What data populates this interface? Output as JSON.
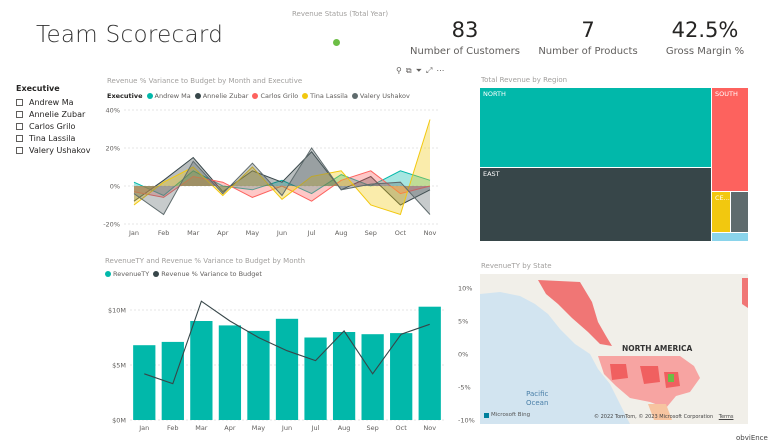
{
  "page": {
    "title": "Team Scorecard"
  },
  "kpis": {
    "status_title": "Revenue Status (Total Year)",
    "status_color": "#6cbe45",
    "customers": {
      "value": "83",
      "label": "Number of Customers"
    },
    "products": {
      "value": "7",
      "label": "Number of Products"
    },
    "margin": {
      "value": "42.5%",
      "label": "Gross Margin %"
    }
  },
  "slicer": {
    "title": "Executive",
    "items": [
      "Andrew Ma",
      "Annelie Zubar",
      "Carlos Grilo",
      "Tina Lassila",
      "Valery Ushakov"
    ]
  },
  "toolbar": {
    "icons": [
      "pin-icon",
      "copy-icon",
      "filter-icon",
      "focus-icon",
      "more-icon"
    ],
    "glyphs": [
      "⚲",
      "⧉",
      "⏷",
      "⤢",
      "⋯"
    ]
  },
  "chart_data": [
    {
      "type": "area",
      "title": "Revenue % Variance to Budget by Month and Executive",
      "legend_title": "Executive",
      "legend_placement": "top-left",
      "categories": [
        "Jan",
        "Feb",
        "Mar",
        "Apr",
        "May",
        "Jun",
        "Jul",
        "Aug",
        "Sep",
        "Oct",
        "Nov"
      ],
      "ylim": [
        -20,
        40
      ],
      "yticks": [
        -20,
        0,
        20,
        40
      ],
      "ytick_labels": [
        "-20%",
        "0%",
        "20%",
        "40%"
      ],
      "grid": true,
      "series": [
        {
          "name": "Andrew Ma",
          "color": "#01b8aa",
          "values": [
            2,
            -5,
            8,
            0,
            -2,
            3,
            -4,
            6,
            0,
            8,
            3
          ]
        },
        {
          "name": "Annelie Zubar",
          "color": "#374649",
          "values": [
            -8,
            3,
            15,
            -3,
            8,
            2,
            18,
            -2,
            5,
            -10,
            -2
          ]
        },
        {
          "name": "Carlos Grilo",
          "color": "#fd625e",
          "values": [
            -3,
            -6,
            5,
            2,
            -6,
            0,
            -8,
            3,
            8,
            -4,
            0
          ]
        },
        {
          "name": "Tina Lassila",
          "color": "#f2c80f",
          "values": [
            -10,
            2,
            10,
            -5,
            10,
            -7,
            5,
            8,
            -10,
            -15,
            35
          ]
        },
        {
          "name": "Valery Ushakov",
          "color": "#5f6b6d",
          "values": [
            -4,
            -15,
            13,
            -4,
            12,
            -5,
            20,
            -2,
            1,
            2,
            -15
          ]
        }
      ]
    },
    {
      "type": "bar",
      "title": "Total Revenue by Region",
      "categories": [
        "NORTH",
        "SOUTH",
        "EAST",
        "CE..."
      ],
      "colors": [
        "#01b8aa",
        "#fd625e",
        "#374649",
        "#f2c80f"
      ]
    },
    {
      "type": "bar",
      "title": "RevenueTY and Revenue % Variance to Budget by Month",
      "legend_placement": "top-left",
      "categories": [
        "Jan",
        "Feb",
        "Mar",
        "Apr",
        "May",
        "Jun",
        "Jul",
        "Aug",
        "Sep",
        "Oct",
        "Nov"
      ],
      "ylim": [
        0,
        12
      ],
      "y2lim": [
        -10,
        10
      ],
      "yticks": [
        0,
        5,
        10
      ],
      "ytick_labels": [
        "$0M",
        "$5M",
        "$10M"
      ],
      "y2ticks": [
        -10,
        -5,
        0,
        5,
        10
      ],
      "y2tick_labels": [
        "-10%",
        "-5%",
        "0%",
        "5%",
        "10%"
      ],
      "series": [
        {
          "name": "RevenueTY",
          "color": "#01b8aa",
          "kind": "bar",
          "values": [
            6.8,
            7.1,
            9.0,
            8.6,
            8.1,
            9.2,
            7.5,
            8.0,
            7.8,
            7.9,
            10.3
          ]
        },
        {
          "name": "Revenue % Variance to Budget",
          "color": "#374649",
          "kind": "line",
          "values": [
            -3.0,
            -4.5,
            8.0,
            5.0,
            2.5,
            0.5,
            -1.0,
            3.5,
            -3.0,
            3.0,
            4.5
          ]
        }
      ]
    }
  ],
  "map": {
    "title": "RevenueTY by State",
    "label_na": "NORTH AMERICA",
    "label_ocean": "Pacific\nOcean",
    "ocean_line1": "Pacific",
    "ocean_line2": "Ocean",
    "bing": "Microsoft Bing",
    "copyright": "© 2022 TomTom, © 2023 Microsoft Corporation",
    "terms": "Terms"
  },
  "footer": {
    "brand": "obviEnce"
  }
}
